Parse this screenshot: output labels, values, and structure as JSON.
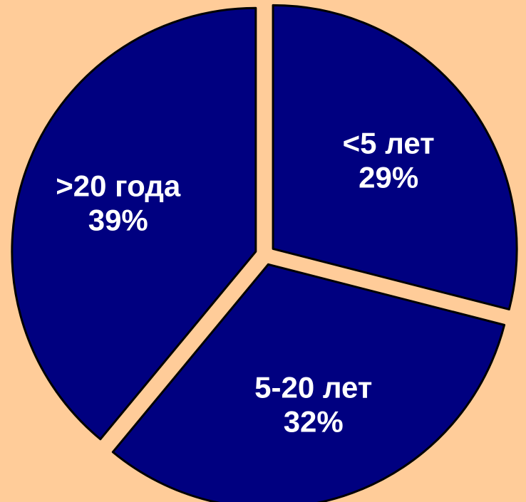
{
  "chart_data": {
    "type": "pie",
    "categories": [
      "<5 лет",
      "5-20 лет",
      ">20 года"
    ],
    "values": [
      29,
      32,
      39
    ],
    "value_labels": [
      "29%",
      "32%",
      "39%"
    ],
    "color": "#000080"
  }
}
